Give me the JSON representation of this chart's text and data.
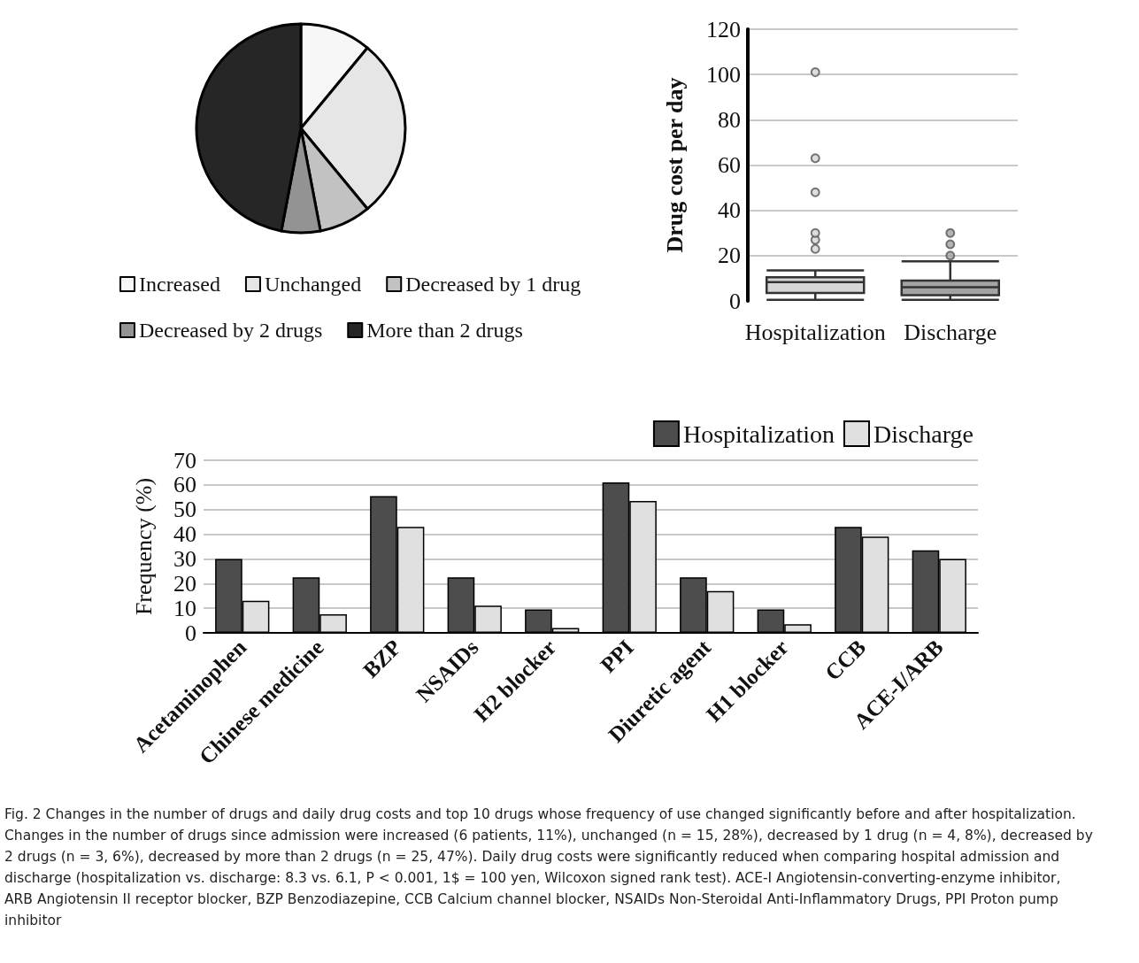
{
  "chart_data": [
    {
      "type": "pie",
      "categories": [
        "Increased",
        "Unchanged",
        "Decreased by 1 drug",
        "Decreased by 2 drugs",
        "More than 2 drugs"
      ],
      "values": [
        11,
        28,
        8,
        6,
        47
      ],
      "colors": [
        "#f7f7f7",
        "#e6e6e6",
        "#c2c2c2",
        "#939393",
        "#262626"
      ],
      "legend": "bottom"
    },
    {
      "type": "box",
      "ylabel": "Drug cost per day",
      "categories": [
        "Hospitalization",
        "Discharge"
      ],
      "colors": [
        "#d6d6d6",
        "#a3a3a3"
      ],
      "boxes": [
        {
          "low": 0.5,
          "q1": 3.5,
          "median": 8.3,
          "q3": 10.5,
          "high": 13.5,
          "outliers": [
            23,
            27,
            30,
            48,
            63,
            101
          ]
        },
        {
          "low": 0.5,
          "q1": 2.5,
          "median": 6.1,
          "q3": 9,
          "high": 17.5,
          "outliers": [
            20,
            25,
            30
          ]
        }
      ],
      "ylim": [
        0,
        120
      ],
      "yticks": [
        0,
        20,
        40,
        60,
        80,
        100,
        120
      ],
      "grid": "y"
    },
    {
      "type": "bar",
      "ylabel": "Frequency (%)",
      "categories": [
        "Acetaminophen",
        "Chinese medicine",
        "BZP",
        "NSAIDs",
        "H2 blocker",
        "PPI",
        "Diuretic agent",
        "H1 blocker",
        "CCB",
        "ACE-I/ARB"
      ],
      "series": [
        {
          "name": "Hospitalization",
          "color": "#4d4d4d",
          "values": [
            30,
            22.5,
            55.5,
            22.5,
            9.5,
            61,
            22.5,
            9.5,
            43,
            33.5
          ]
        },
        {
          "name": "Discharge",
          "color": "#e0e0e0",
          "values": [
            13,
            7.5,
            43,
            11,
            2,
            53.5,
            17,
            3.5,
            39,
            30
          ]
        }
      ],
      "ylim": [
        0,
        70
      ],
      "yticks": [
        0,
        10,
        20,
        30,
        40,
        50,
        60,
        70
      ],
      "grid": "y",
      "legend": "top right",
      "annotations": [
        "Fig. 2 Changes in the number of drugs and daily drug costs and top 10 drugs whose frequency of use changed significantly before and after hospitalization. Changes in the number of drugs since admission were increased (6 patients, 11%), unchanged (n = 15, 28%), decreased by 1 drug (n = 4, 8%), decreased by 2 drugs (n = 3, 6%), decreased by more than 2 drugs (n = 25, 47%). Daily drug costs were significantly reduced when comparing hospital admission and discharge (hospitalization vs. discharge: 8.3 vs. 6.1, P < 0.001, 1$ = 100 yen, Wilcoxon signed rank test). ACE-I Angiotensin-converting-enzyme inhibitor, ARB Angiotensin II receptor blocker, BZP Benzodiazepine, CCB Calcium channel blocker, NSAIDs Non-Steroidal Anti-Inflammatory Drugs, PPI Proton pump inhibitor"
      ]
    }
  ]
}
